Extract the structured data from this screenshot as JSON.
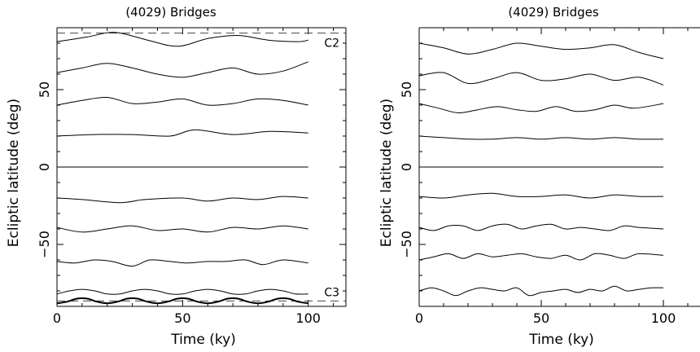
{
  "chart_data": [
    {
      "type": "line",
      "title": "(4029) Bridges",
      "xlabel": "Time (ky)",
      "ylabel": "Ecliptic latitude (deg)",
      "xlim": [
        0,
        115
      ],
      "ylim": [
        -90,
        90
      ],
      "xticks": [
        "0",
        "50",
        "100"
      ],
      "yticks": [
        "−50",
        "0",
        "50"
      ],
      "grid": false,
      "reference_lines": [
        {
          "y": 86.5,
          "style": "dashed",
          "label": "C2"
        },
        {
          "y": -86.5,
          "style": "dashed",
          "label": "C3"
        }
      ],
      "series": [
        {
          "x": [
            0,
            12,
            23,
            36,
            48,
            60,
            72,
            84,
            96,
            100
          ],
          "values": [
            81,
            84,
            87,
            82,
            78,
            83,
            85,
            82,
            81,
            82
          ]
        },
        {
          "x": [
            0,
            10,
            20,
            30,
            40,
            50,
            60,
            70,
            80,
            90,
            100
          ],
          "values": [
            61,
            64,
            67,
            64,
            60,
            58,
            61,
            64,
            60,
            62,
            68
          ]
        },
        {
          "x": [
            0,
            10,
            20,
            30,
            40,
            50,
            60,
            70,
            80,
            90,
            100
          ],
          "values": [
            40,
            43,
            45,
            41,
            42,
            44,
            40,
            41,
            44,
            43,
            40
          ]
        },
        {
          "x": [
            0,
            15,
            30,
            45,
            55,
            70,
            85,
            100
          ],
          "values": [
            20,
            21,
            21,
            20,
            24,
            21,
            23,
            22
          ]
        },
        {
          "x": [
            0,
            50,
            100
          ],
          "values": [
            0,
            0,
            0
          ]
        },
        {
          "x": [
            0,
            10,
            25,
            35,
            50,
            60,
            70,
            80,
            90,
            100
          ],
          "values": [
            -20,
            -21,
            -23,
            -21,
            -20,
            -22,
            -20,
            -21,
            -19,
            -20
          ]
        },
        {
          "x": [
            0,
            10,
            20,
            30,
            40,
            50,
            60,
            70,
            80,
            90,
            100
          ],
          "values": [
            -39,
            -42,
            -40,
            -38,
            -41,
            -40,
            -42,
            -39,
            -40,
            -38,
            -40
          ]
        },
        {
          "x": [
            0,
            7,
            15,
            22,
            30,
            37,
            45,
            52,
            60,
            67,
            75,
            82,
            90,
            100
          ],
          "values": [
            -61,
            -62,
            -60,
            -61,
            -64,
            -60,
            -61,
            -62,
            -61,
            -61,
            -60,
            -63,
            -60,
            -62
          ]
        },
        {
          "x": [
            0,
            5,
            10,
            15,
            20,
            25,
            30,
            35,
            40,
            45,
            50,
            55,
            60,
            65,
            70,
            75,
            80,
            85,
            90,
            95,
            100
          ],
          "values": [
            -82,
            -80,
            -79,
            -80,
            -82,
            -82,
            -80,
            -79,
            -80,
            -82,
            -82,
            -80,
            -79,
            -80,
            -82,
            -82,
            -80,
            -79,
            -80,
            -82,
            -82
          ]
        },
        {
          "x": [
            0,
            4,
            8,
            12,
            16,
            20,
            24,
            28,
            32,
            36,
            40,
            44,
            48,
            52,
            56,
            60,
            64,
            68,
            72,
            76,
            80,
            84,
            88,
            92,
            96,
            100
          ],
          "values": [
            -88,
            -87,
            -85,
            -85,
            -87,
            -88,
            -87,
            -85,
            -85,
            -87,
            -88,
            -87,
            -85,
            -85,
            -87,
            -88,
            -87,
            -85,
            -85,
            -87,
            -88,
            -87,
            -85,
            -85,
            -87,
            -88
          ]
        }
      ]
    },
    {
      "type": "line",
      "title": "(4029) Bridges",
      "xlabel": "Time (ky)",
      "ylabel": "Ecliptic latitude (deg)",
      "xlim": [
        0,
        115
      ],
      "ylim": [
        -90,
        90
      ],
      "xticks": [
        "0",
        "50",
        "100"
      ],
      "yticks": [
        "−50",
        "0",
        "50"
      ],
      "grid": false,
      "series": [
        {
          "x": [
            0,
            10,
            20,
            30,
            40,
            50,
            60,
            70,
            80,
            90,
            100
          ],
          "values": [
            80,
            77,
            73,
            76,
            80,
            78,
            76,
            77,
            79,
            74,
            70
          ]
        },
        {
          "x": [
            0,
            10,
            20,
            30,
            40,
            50,
            60,
            70,
            80,
            90,
            100
          ],
          "values": [
            59,
            61,
            54,
            57,
            61,
            56,
            57,
            60,
            56,
            58,
            53
          ]
        },
        {
          "x": [
            0,
            8,
            16,
            24,
            32,
            40,
            48,
            56,
            64,
            72,
            80,
            88,
            100
          ],
          "values": [
            41,
            38,
            35,
            37,
            39,
            37,
            36,
            39,
            36,
            37,
            40,
            38,
            41
          ]
        },
        {
          "x": [
            0,
            10,
            20,
            30,
            40,
            50,
            60,
            70,
            80,
            90,
            100
          ],
          "values": [
            20,
            19,
            18,
            18,
            19,
            18,
            19,
            18,
            19,
            18,
            18
          ]
        },
        {
          "x": [
            0,
            50,
            100
          ],
          "values": [
            0,
            0,
            0
          ]
        },
        {
          "x": [
            0,
            10,
            20,
            30,
            40,
            50,
            60,
            70,
            80,
            90,
            100
          ],
          "values": [
            -19,
            -20,
            -18,
            -17,
            -19,
            -19,
            -18,
            -20,
            -18,
            -19,
            -19
          ]
        },
        {
          "x": [
            0,
            6,
            12,
            18,
            24,
            30,
            36,
            42,
            48,
            54,
            60,
            66,
            72,
            78,
            84,
            90,
            100
          ],
          "values": [
            -39,
            -41,
            -38,
            -38,
            -41,
            -38,
            -37,
            -40,
            -38,
            -37,
            -40,
            -39,
            -40,
            -41,
            -38,
            -39,
            -40
          ]
        },
        {
          "x": [
            0,
            6,
            12,
            18,
            24,
            30,
            36,
            42,
            48,
            54,
            60,
            66,
            72,
            78,
            84,
            90,
            100
          ],
          "values": [
            -60,
            -58,
            -56,
            -59,
            -56,
            -58,
            -57,
            -56,
            -58,
            -59,
            -57,
            -60,
            -56,
            -57,
            -59,
            -56,
            -57
          ]
        },
        {
          "x": [
            0,
            5,
            10,
            15,
            20,
            25,
            30,
            35,
            40,
            45,
            50,
            55,
            60,
            65,
            70,
            75,
            80,
            85,
            90,
            95,
            100
          ],
          "values": [
            -80,
            -78,
            -80,
            -83,
            -80,
            -78,
            -79,
            -80,
            -78,
            -83,
            -81,
            -80,
            -79,
            -81,
            -79,
            -80,
            -77,
            -80,
            -79,
            -78,
            -78
          ]
        }
      ]
    }
  ]
}
